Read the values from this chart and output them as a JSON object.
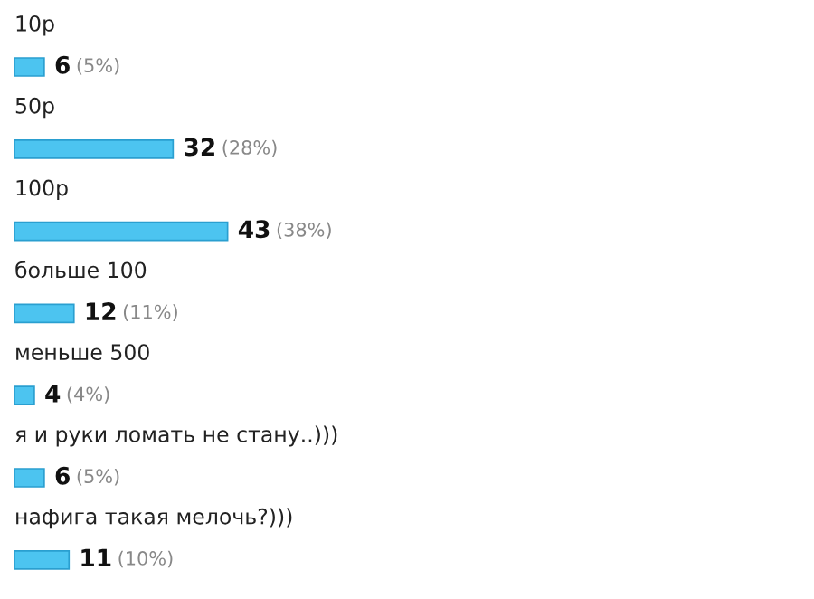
{
  "chart_data": {
    "type": "bar",
    "orientation": "horizontal",
    "categories": [
      "10р",
      "50р",
      "100р",
      "больше 100",
      "меньше 500",
      "я и руки ломать не стану..)))",
      "нафига такая мелочь?)))"
    ],
    "values": [
      6,
      32,
      43,
      12,
      4,
      6,
      11
    ],
    "value_labels": [
      "6 (5%)",
      "32 (28%)",
      "43 (38%)",
      "12 (11%)",
      "4 (4%)",
      "6 (5%)",
      "11 (10%)"
    ],
    "color": "#4cc4f0"
  }
}
